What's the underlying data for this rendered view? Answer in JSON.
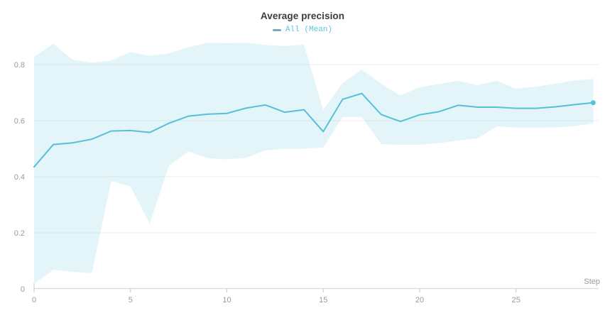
{
  "header": {
    "title": "Average precision"
  },
  "legend": {
    "label": "All (Mean)",
    "label_color": "#5bc6da",
    "marker_color": "#77a8bb"
  },
  "chart_data": {
    "type": "line",
    "title": "Average precision",
    "x_label": "Step",
    "xlim": [
      0,
      29.3
    ],
    "ylim": [
      0,
      0.89
    ],
    "grid": "horizontal-only",
    "legend_position": "top-center",
    "x_ticks": [
      0,
      5,
      10,
      15,
      20,
      25
    ],
    "x_tick_labels": [
      "0",
      "5",
      "10",
      "15",
      "20",
      "25"
    ],
    "y_ticks": [
      0,
      0.2,
      0.4,
      0.6,
      0.8
    ],
    "y_tick_labels": [
      "0",
      "0.2",
      "0.4",
      "0.6",
      "0.8"
    ],
    "axis_color": "#dedede",
    "tick_color": "#cfcfcf",
    "gridline_color": "#ededed",
    "end_marker": true,
    "series": [
      {
        "name": "All (Mean)",
        "color": "#55c1d7",
        "band_color": "rgba(85,193,215,0.16)",
        "x": [
          0,
          1,
          2,
          3,
          4,
          5,
          6,
          7,
          8,
          9,
          10,
          11,
          12,
          13,
          14,
          15,
          16,
          17,
          18,
          19,
          20,
          21,
          22,
          23,
          24,
          25,
          26,
          27,
          28,
          29
        ],
        "mean": [
          0.435,
          0.515,
          0.521,
          0.534,
          0.563,
          0.565,
          0.558,
          0.591,
          0.616,
          0.623,
          0.626,
          0.645,
          0.656,
          0.63,
          0.639,
          0.561,
          0.676,
          0.697,
          0.622,
          0.597,
          0.621,
          0.632,
          0.655,
          0.648,
          0.648,
          0.644,
          0.644,
          0.649,
          0.657,
          0.664
        ],
        "band_upper": [
          0.828,
          0.874,
          0.817,
          0.807,
          0.815,
          0.845,
          0.831,
          0.84,
          0.862,
          0.878,
          0.877,
          0.878,
          0.87,
          0.866,
          0.871,
          0.638,
          0.734,
          0.782,
          0.732,
          0.69,
          0.719,
          0.731,
          0.742,
          0.727,
          0.742,
          0.714,
          0.721,
          0.731,
          0.743,
          0.749
        ],
        "band_lower": [
          0.018,
          0.068,
          0.061,
          0.056,
          0.385,
          0.365,
          0.233,
          0.44,
          0.49,
          0.466,
          0.462,
          0.467,
          0.494,
          0.5,
          0.5,
          0.504,
          0.613,
          0.613,
          0.516,
          0.514,
          0.514,
          0.52,
          0.529,
          0.537,
          0.58,
          0.575,
          0.575,
          0.576,
          0.58,
          0.59
        ]
      }
    ]
  }
}
